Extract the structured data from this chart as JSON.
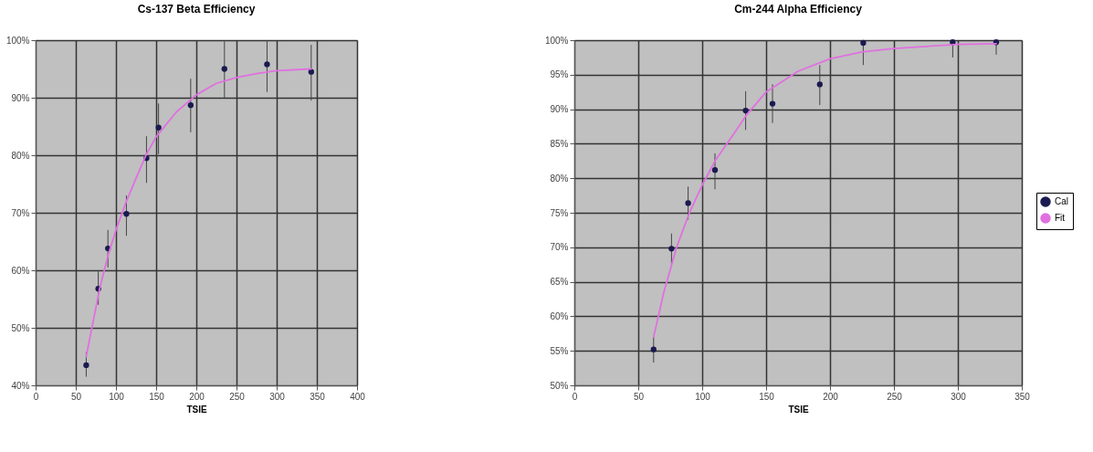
{
  "chart_data": [
    {
      "type": "scatter",
      "title": "Cs-137 Beta Efficiency",
      "xlabel": "TSIE",
      "xlim": [
        0,
        400
      ],
      "xticks": [
        0,
        50,
        100,
        150,
        200,
        250,
        300,
        350,
        400
      ],
      "ylim": [
        40,
        100
      ],
      "yticks": [
        {
          "value": 40,
          "label": "40%"
        },
        {
          "value": 50,
          "label": "50%"
        },
        {
          "value": 60,
          "label": "60%"
        },
        {
          "value": 70,
          "label": "70%"
        },
        {
          "value": 80,
          "label": "80%"
        },
        {
          "value": 90,
          "label": "90%"
        },
        {
          "value": 100,
          "label": "100%"
        }
      ],
      "grid": true,
      "series": [
        {
          "marker": "circle",
          "color": "#1a1a50",
          "x": [
            63,
            78,
            90,
            113,
            138,
            153,
            193,
            235,
            288,
            343
          ],
          "values": [
            43.5,
            56.8,
            63.8,
            69.8,
            79.5,
            84.8,
            88.7,
            95,
            95.8,
            94.5
          ],
          "errors": [
            [
              41.5,
              45.8
            ],
            [
              54,
              59.8
            ],
            [
              60.5,
              67
            ],
            [
              66,
              73
            ],
            [
              75.2,
              83.3
            ],
            [
              80.2,
              89
            ],
            [
              84,
              93.3
            ],
            [
              90,
              99.8
            ],
            [
              91,
              100
            ],
            [
              89.5,
              99.2
            ]
          ]
        },
        {
          "type": "line",
          "color": "#e070e0",
          "x": [
            63,
            70,
            80,
            90,
            100,
            113,
            125,
            138,
            150,
            175,
            200,
            225,
            250,
            275,
            300,
            343
          ],
          "values": [
            45,
            50,
            57,
            62.5,
            67,
            72,
            76,
            80.2,
            83.2,
            87.5,
            90.5,
            92.5,
            93.5,
            94.2,
            94.7,
            95
          ]
        }
      ]
    },
    {
      "type": "scatter",
      "title": "Cm-244 Alpha Efficiency",
      "xlabel": "TSIE",
      "xlim": [
        0,
        350
      ],
      "xticks": [
        0,
        50,
        100,
        150,
        200,
        250,
        300,
        350
      ],
      "ylim": [
        50,
        100
      ],
      "yticks": [
        {
          "value": 50,
          "label": "50%"
        },
        {
          "value": 55,
          "label": "55%"
        },
        {
          "value": 60,
          "label": "60%"
        },
        {
          "value": 65,
          "label": "65%"
        },
        {
          "value": 70,
          "label": "70%"
        },
        {
          "value": 75,
          "label": "75%"
        },
        {
          "value": 80,
          "label": "80%"
        },
        {
          "value": 85,
          "label": "85%"
        },
        {
          "value": 90,
          "label": "90%"
        },
        {
          "value": 95,
          "label": "95%"
        },
        {
          "value": 100,
          "label": "100%"
        }
      ],
      "grid": true,
      "legend": "right",
      "series": [
        {
          "name": "Cal",
          "marker": "circle",
          "color": "#1a1a50",
          "x": [
            62,
            76,
            89,
            110,
            134,
            155,
            192,
            226,
            296,
            330
          ],
          "values": [
            55.2,
            69.8,
            76.4,
            81.2,
            89.8,
            90.8,
            93.6,
            99.6,
            99.7,
            99.7
          ],
          "errors": [
            [
              53.3,
              57
            ],
            [
              67.5,
              72
            ],
            [
              74,
              78.8
            ],
            [
              78.4,
              83.6
            ],
            [
              87,
              92.6
            ],
            [
              88,
              93.6
            ],
            [
              90.6,
              96.4
            ],
            [
              96.4,
              100
            ],
            [
              97.5,
              100
            ],
            [
              97.9,
              100
            ]
          ]
        },
        {
          "name": "Fit",
          "type": "line",
          "color": "#e070e0",
          "x": [
            62,
            70,
            80,
            90,
            100,
            110,
            125,
            134,
            150,
            175,
            200,
            225,
            250,
            300,
            330
          ],
          "values": [
            57,
            63.5,
            70,
            75,
            79,
            82.5,
            86.5,
            89,
            92.5,
            95.5,
            97.3,
            98.3,
            98.8,
            99.4,
            99.5
          ]
        }
      ]
    }
  ]
}
